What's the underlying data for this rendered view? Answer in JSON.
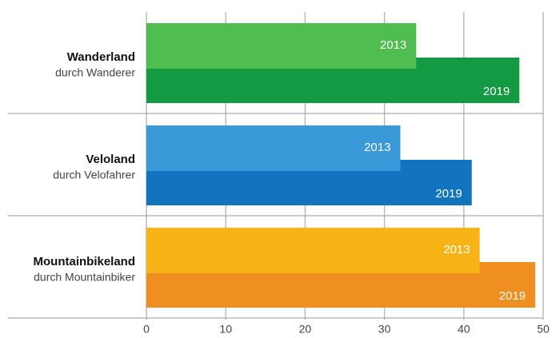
{
  "chart_data": {
    "type": "bar",
    "orientation": "horizontal",
    "categories": [
      "Wanderland",
      "Veloland",
      "Mountainbikeland"
    ],
    "category_subtitles": [
      "durch Wanderer",
      "durch Velofahrer",
      "durch Mountainbiker"
    ],
    "series": [
      {
        "name": "2013",
        "colors": [
          "#4fbd4f",
          "#3a9ad9",
          "#f8b316"
        ],
        "values": [
          34,
          32,
          42
        ]
      },
      {
        "name": "2019",
        "colors": [
          "#139a43",
          "#1273bf",
          "#ef8f22"
        ],
        "values": [
          47,
          41,
          49
        ]
      }
    ],
    "xlim": [
      0,
      50
    ],
    "xticks": [
      0,
      10,
      20,
      30,
      40,
      50
    ],
    "grid": true
  }
}
